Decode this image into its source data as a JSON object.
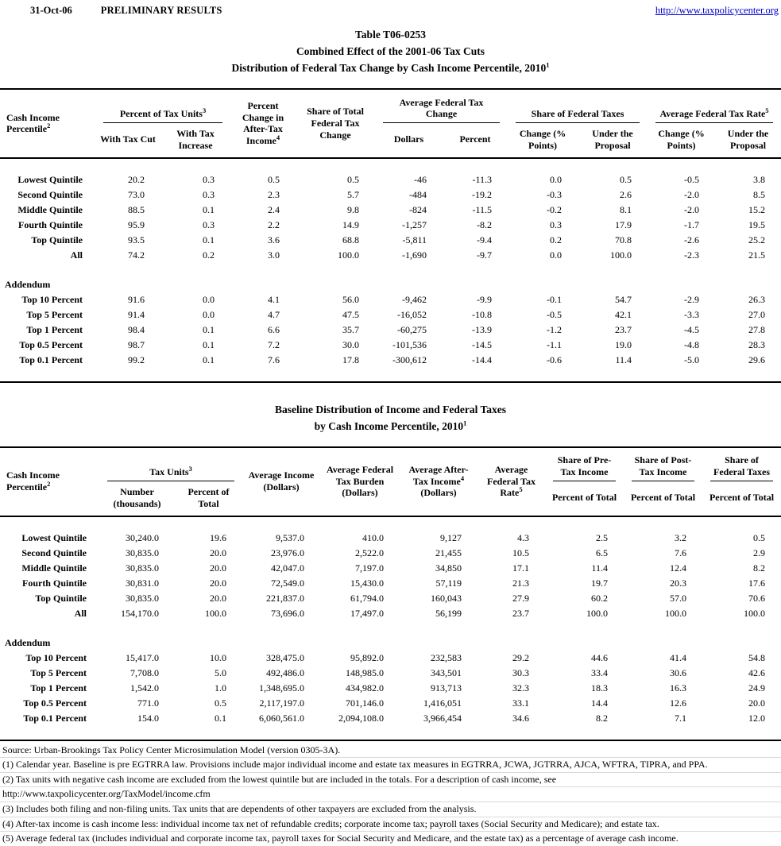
{
  "page_header": {
    "date": "31-Oct-06",
    "status": "PRELIMINARY RESULTS",
    "link_text": "http://www.taxpolicycenter.org",
    "link_href": "http://www.taxpolicycenter.org"
  },
  "title1": {
    "line1": "Table T06-0253",
    "line2": "Combined Effect of the 2001-06 Tax Cuts",
    "line3": "Distribution of Federal Tax Change by Cash Income Percentile, 2010",
    "sup": "1"
  },
  "table1": {
    "headers": {
      "cash_income": {
        "text": "Cash Income Percentile",
        "sup": "2"
      },
      "pct_tax_units": {
        "text": "Percent of Tax Units",
        "sup": "3"
      },
      "with_tax_cut": "With Tax Cut",
      "with_tax_increase": "With Tax Increase",
      "pct_change_ati": {
        "text": "Percent Change in After-Tax Income",
        "sup": "4"
      },
      "share_total_change": "Share of Total Federal Tax Change",
      "avg_change": "Average Federal Tax Change",
      "dollars": "Dollars",
      "percent": "Percent",
      "share_fed_taxes": "Share of Federal Taxes",
      "change_points": "Change (% Points)",
      "under_proposal": "Under the Proposal",
      "avg_rate": {
        "text": "Average Federal Tax Rate",
        "sup": "5"
      }
    },
    "rows": [
      {
        "type": "spacer",
        "size": "sm"
      },
      {
        "label": "Lowest Quintile",
        "values": [
          "20.2",
          "0.3",
          "0.5",
          "0.5",
          "-46",
          "-11.3",
          "0.0",
          "0.5",
          "-0.5",
          "3.8"
        ]
      },
      {
        "label": "Second Quintile",
        "values": [
          "73.0",
          "0.3",
          "2.3",
          "5.7",
          "-484",
          "-19.2",
          "-0.3",
          "2.6",
          "-2.0",
          "8.5"
        ]
      },
      {
        "label": "Middle Quintile",
        "values": [
          "88.5",
          "0.1",
          "2.4",
          "9.8",
          "-824",
          "-11.5",
          "-0.2",
          "8.1",
          "-2.0",
          "15.2"
        ]
      },
      {
        "label": "Fourth Quintile",
        "values": [
          "95.9",
          "0.3",
          "2.2",
          "14.9",
          "-1,257",
          "-8.2",
          "0.3",
          "17.9",
          "-1.7",
          "19.5"
        ]
      },
      {
        "label": "Top Quintile",
        "values": [
          "93.5",
          "0.1",
          "3.6",
          "68.8",
          "-5,811",
          "-9.4",
          "0.2",
          "70.8",
          "-2.6",
          "25.2"
        ]
      },
      {
        "label": "All",
        "values": [
          "74.2",
          "0.2",
          "3.0",
          "100.0",
          "-1,690",
          "-9.7",
          "0.0",
          "100.0",
          "-2.3",
          "21.5"
        ]
      },
      {
        "type": "spacer"
      },
      {
        "type": "section",
        "label": "Addendum"
      },
      {
        "label": "Top 10 Percent",
        "values": [
          "91.6",
          "0.0",
          "4.1",
          "56.0",
          "-9,462",
          "-9.9",
          "-0.1",
          "54.7",
          "-2.9",
          "26.3"
        ]
      },
      {
        "label": "Top 5 Percent",
        "values": [
          "91.4",
          "0.0",
          "4.7",
          "47.5",
          "-16,052",
          "-10.8",
          "-0.5",
          "42.1",
          "-3.3",
          "27.0"
        ]
      },
      {
        "label": "Top 1 Percent",
        "values": [
          "98.4",
          "0.1",
          "6.6",
          "35.7",
          "-60,275",
          "-13.9",
          "-1.2",
          "23.7",
          "-4.5",
          "27.8"
        ]
      },
      {
        "label": "Top 0.5 Percent",
        "values": [
          "98.7",
          "0.1",
          "7.2",
          "30.0",
          "-101,536",
          "-14.5",
          "-1.1",
          "19.0",
          "-4.8",
          "28.3"
        ]
      },
      {
        "label": "Top 0.1 Percent",
        "values": [
          "99.2",
          "0.1",
          "7.6",
          "17.8",
          "-300,612",
          "-14.4",
          "-0.6",
          "11.4",
          "-5.0",
          "29.6"
        ]
      },
      {
        "type": "spacer",
        "size": "sm"
      }
    ]
  },
  "title2": {
    "line1": "Baseline Distribution of Income and Federal Taxes",
    "line2": "by Cash Income Percentile, 2010",
    "sup": "1"
  },
  "table2": {
    "headers": {
      "cash_income": {
        "text": "Cash Income Percentile",
        "sup": "2"
      },
      "tax_units": {
        "text": "Tax Units",
        "sup": "3"
      },
      "number_thousands": "Number (thousands)",
      "percent_of_total": "Percent of Total",
      "avg_income": "Average Income (Dollars)",
      "avg_burden": "Average Federal Tax Burden (Dollars)",
      "avg_after_tax_income": {
        "text": "Average After-Tax Income",
        "sup": "4",
        "post": "(Dollars)"
      },
      "avg_rate": {
        "text": "Average Federal Tax Rate",
        "sup": "5"
      },
      "share_pre_tax": "Share of Pre-Tax Income",
      "share_post_tax": "Share of Post-Tax Income",
      "share_fed_taxes": "Share of Federal Taxes"
    },
    "rows": [
      {
        "type": "spacer",
        "size": "sm"
      },
      {
        "label": "Lowest Quintile",
        "values": [
          "30,240.0",
          "19.6",
          "9,537.0",
          "410.0",
          "9,127",
          "4.3",
          "2.5",
          "3.2",
          "0.5"
        ]
      },
      {
        "label": "Second Quintile",
        "values": [
          "30,835.0",
          "20.0",
          "23,976.0",
          "2,522.0",
          "21,455",
          "10.5",
          "6.5",
          "7.6",
          "2.9"
        ]
      },
      {
        "label": "Middle Quintile",
        "values": [
          "30,835.0",
          "20.0",
          "42,047.0",
          "7,197.0",
          "34,850",
          "17.1",
          "11.4",
          "12.4",
          "8.2"
        ]
      },
      {
        "label": "Fourth Quintile",
        "values": [
          "30,831.0",
          "20.0",
          "72,549.0",
          "15,430.0",
          "57,119",
          "21.3",
          "19.7",
          "20.3",
          "17.6"
        ]
      },
      {
        "label": "Top Quintile",
        "values": [
          "30,835.0",
          "20.0",
          "221,837.0",
          "61,794.0",
          "160,043",
          "27.9",
          "60.2",
          "57.0",
          "70.6"
        ]
      },
      {
        "label": "All",
        "values": [
          "154,170.0",
          "100.0",
          "73,696.0",
          "17,497.0",
          "56,199",
          "23.7",
          "100.0",
          "100.0",
          "100.0"
        ]
      },
      {
        "type": "spacer"
      },
      {
        "type": "section",
        "label": "Addendum"
      },
      {
        "label": "Top 10 Percent",
        "values": [
          "15,417.0",
          "10.0",
          "328,475.0",
          "95,892.0",
          "232,583",
          "29.2",
          "44.6",
          "41.4",
          "54.8"
        ]
      },
      {
        "label": "Top 5 Percent",
        "values": [
          "7,708.0",
          "5.0",
          "492,486.0",
          "148,985.0",
          "343,501",
          "30.3",
          "33.4",
          "30.6",
          "42.6"
        ]
      },
      {
        "label": "Top 1 Percent",
        "values": [
          "1,542.0",
          "1.0",
          "1,348,695.0",
          "434,982.0",
          "913,713",
          "32.3",
          "18.3",
          "16.3",
          "24.9"
        ]
      },
      {
        "label": "Top 0.5 Percent",
        "values": [
          "771.0",
          "0.5",
          "2,117,197.0",
          "701,146.0",
          "1,416,051",
          "33.1",
          "14.4",
          "12.6",
          "20.0"
        ]
      },
      {
        "label": "Top 0.1 Percent",
        "values": [
          "154.0",
          "0.1",
          "6,060,561.0",
          "2,094,108.0",
          "3,966,454",
          "34.6",
          "8.2",
          "7.1",
          "12.0"
        ]
      },
      {
        "type": "spacer",
        "size": "sm"
      }
    ]
  },
  "footnotes": [
    "Source: Urban-Brookings Tax Policy Center Microsimulation Model (version 0305-3A).",
    "(1) Calendar year. Baseline is pre EGTRRA law. Provisions include major individual income and estate tax measures in EGTRRA, JCWA, JGTRRA, AJCA, WFTRA, TIPRA, and PPA.",
    "(2) Tax units with negative cash income are excluded from the lowest quintile but are included in the totals. For a description of cash income, see",
    "http://www.taxpolicycenter.org/TaxModel/income.cfm",
    "(3) Includes both filing and non-filing units.  Tax units that are dependents of other taxpayers are excluded from the analysis.",
    "(4) After-tax income is cash income less: individual income tax net of refundable credits; corporate income tax; payroll taxes (Social Security and Medicare); and estate tax.",
    "(5) Average federal tax (includes individual and corporate income tax, payroll taxes for Social Security and Medicare, and the estate tax) as a percentage of average cash income."
  ]
}
